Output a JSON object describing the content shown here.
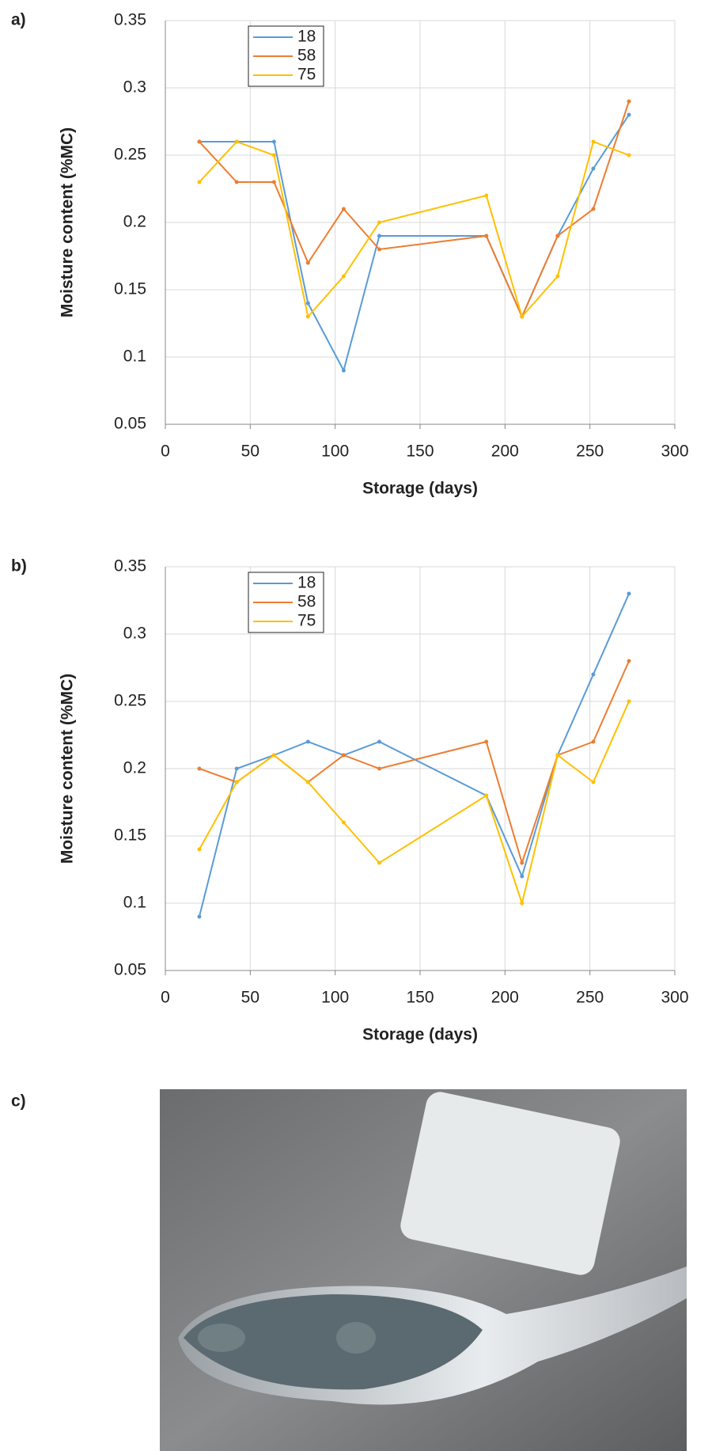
{
  "chart_data": [
    {
      "type": "line",
      "panel_label": "a)",
      "x_label": "Storage (days)",
      "y_label": "Moisture content (%MC)",
      "x": [
        20,
        42,
        64,
        84,
        105,
        126,
        189,
        210,
        231,
        252,
        273
      ],
      "series": [
        {
          "name": "18",
          "color": "#5b9bd5",
          "values": [
            0.26,
            0.26,
            0.26,
            0.14,
            0.09,
            0.19,
            0.19,
            0.13,
            0.19,
            0.24,
            0.28
          ]
        },
        {
          "name": "58",
          "color": "#ed7d31",
          "values": [
            0.26,
            0.23,
            0.23,
            0.17,
            0.21,
            0.18,
            0.19,
            0.13,
            0.19,
            0.21,
            0.29
          ]
        },
        {
          "name": "75",
          "color": "#ffc000",
          "values": [
            0.23,
            0.26,
            0.25,
            0.13,
            0.16,
            0.2,
            0.22,
            0.13,
            0.16,
            0.26,
            0.25
          ]
        }
      ],
      "xlim": [
        0,
        300
      ],
      "xticks": [
        0,
        50,
        100,
        150,
        200,
        250,
        300
      ],
      "ylim": [
        0.05,
        0.35
      ],
      "yticks": [
        0.05,
        0.1,
        0.15,
        0.2,
        0.25,
        0.3,
        0.35
      ],
      "grid": true,
      "legend": "upper left"
    },
    {
      "type": "line",
      "panel_label": "b)",
      "x_label": "Storage (days)",
      "y_label": "Moisture content (%MC)",
      "x": [
        20,
        42,
        64,
        84,
        105,
        126,
        189,
        210,
        231,
        252,
        273
      ],
      "series": [
        {
          "name": "18",
          "color": "#5b9bd5",
          "values": [
            0.09,
            0.2,
            0.21,
            0.22,
            0.21,
            0.22,
            0.18,
            0.12,
            0.21,
            0.27,
            0.33
          ]
        },
        {
          "name": "58",
          "color": "#ed7d31",
          "values": [
            0.2,
            0.19,
            0.21,
            0.19,
            0.21,
            0.2,
            0.22,
            0.13,
            0.21,
            0.22,
            0.28
          ]
        },
        {
          "name": "75",
          "color": "#ffc000",
          "values": [
            0.14,
            0.19,
            0.21,
            0.19,
            0.16,
            0.13,
            0.18,
            0.1,
            0.21,
            0.19,
            0.25
          ]
        }
      ],
      "xlim": [
        0,
        300
      ],
      "xticks": [
        0,
        50,
        100,
        150,
        200,
        250,
        300
      ],
      "ylim": [
        0.05,
        0.35
      ],
      "yticks": [
        0.05,
        0.1,
        0.15,
        0.2,
        0.25,
        0.3,
        0.35
      ],
      "grid": true,
      "legend": "upper left"
    }
  ],
  "photo_label": "c)"
}
